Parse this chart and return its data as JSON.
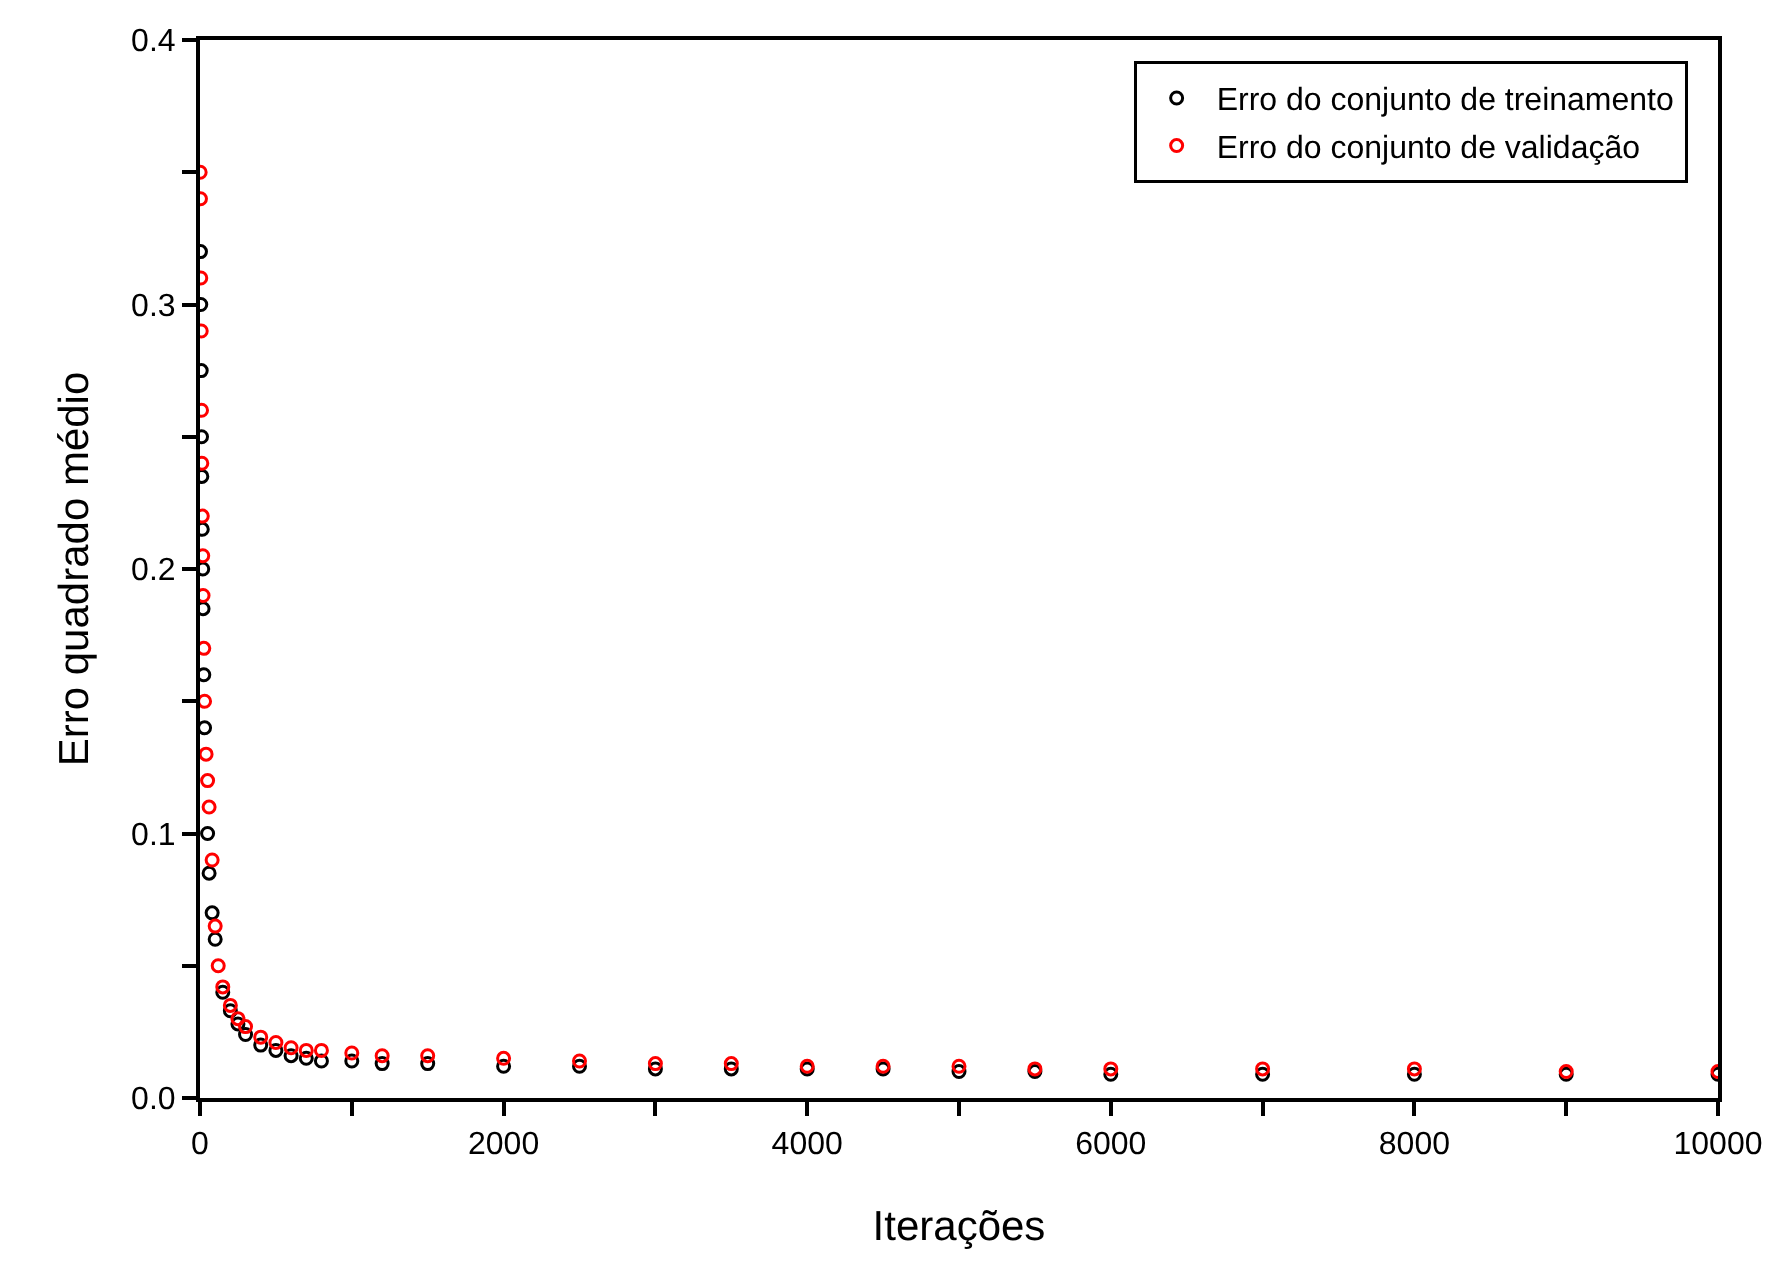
{
  "chart_data": {
    "type": "scatter",
    "xlabel": "Iterações",
    "ylabel": "Erro quadrado médio",
    "xlim": [
      0,
      10000
    ],
    "ylim": [
      0,
      0.4
    ],
    "xticks": [
      0,
      {
        "value": 1000,
        "label": null
      },
      2000,
      {
        "value": 3000,
        "label": null
      },
      4000,
      {
        "value": 5000,
        "label": null
      },
      6000,
      {
        "value": 7000,
        "label": null
      },
      8000,
      {
        "value": 9000,
        "label": null
      },
      10000
    ],
    "yticks": [
      {
        "value": 0,
        "label": "0.0"
      },
      {
        "value": 0.05,
        "label": null
      },
      0.1,
      {
        "value": 0.15,
        "label": null
      },
      0.2,
      {
        "value": 0.25,
        "label": null
      },
      0.3,
      {
        "value": 0.35,
        "label": null
      },
      0.4
    ],
    "marker": "circle",
    "legend": "top right",
    "series": [
      {
        "name": "Erro do conjunto de treinamento",
        "color": "#000000",
        "x": [
          3,
          5,
          8,
          10,
          12,
          15,
          18,
          20,
          25,
          30,
          40,
          50,
          60,
          80,
          100,
          120,
          150,
          200,
          250,
          300,
          400,
          500,
          600,
          700,
          800,
          1000,
          1200,
          1500,
          2000,
          2500,
          3000,
          3500,
          4000,
          4500,
          5000,
          5500,
          6000,
          7000,
          8000,
          9000,
          10000
        ],
        "values": [
          0.32,
          0.3,
          0.275,
          0.25,
          0.235,
          0.215,
          0.2,
          0.185,
          0.16,
          0.14,
          null,
          0.1,
          0.085,
          0.07,
          0.06,
          null,
          0.04,
          0.033,
          0.028,
          0.024,
          0.02,
          0.018,
          0.016,
          0.015,
          0.014,
          0.014,
          0.013,
          0.013,
          0.012,
          0.012,
          0.011,
          0.011,
          0.011,
          0.011,
          0.01,
          0.01,
          0.009,
          0.009,
          0.009,
          0.009,
          0.009
        ]
      },
      {
        "name": "Erro do conjunto de validação",
        "color": "#ff0000",
        "x": [
          1,
          3,
          5,
          8,
          10,
          12,
          15,
          18,
          20,
          25,
          30,
          40,
          50,
          60,
          80,
          100,
          120,
          150,
          200,
          250,
          300,
          400,
          500,
          600,
          700,
          800,
          1000,
          1200,
          1500,
          2000,
          2500,
          3000,
          3500,
          4000,
          4500,
          5000,
          5500,
          6000,
          7000,
          8000,
          9000,
          10000
        ],
        "values": [
          0.35,
          0.34,
          0.31,
          0.29,
          0.26,
          0.24,
          0.22,
          0.205,
          0.19,
          0.17,
          0.15,
          0.13,
          0.12,
          0.11,
          0.09,
          0.065,
          0.05,
          0.042,
          0.035,
          0.03,
          0.027,
          0.023,
          0.021,
          0.019,
          0.018,
          0.018,
          0.017,
          0.016,
          0.016,
          0.015,
          0.014,
          0.013,
          0.013,
          0.012,
          0.012,
          0.012,
          0.011,
          0.011,
          0.011,
          0.011,
          0.01,
          0.01
        ]
      }
    ]
  }
}
